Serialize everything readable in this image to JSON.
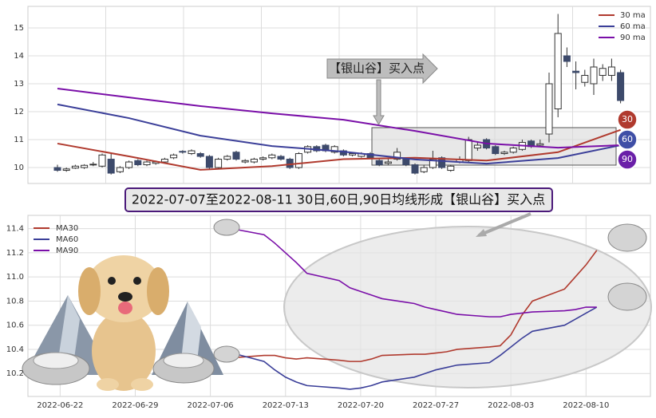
{
  "chart_data": [
    {
      "type": "candlestick",
      "open": [
        10.0,
        9.9,
        9.98,
        10.0,
        10.1,
        10.05,
        10.3,
        9.85,
        10.0,
        10.25,
        10.1,
        10.15,
        10.2,
        10.35,
        10.58,
        10.5,
        10.5,
        10.4,
        10.0,
        10.3,
        10.55,
        10.2,
        10.2,
        10.3,
        10.35,
        10.4,
        10.3,
        10.0,
        10.55,
        10.75,
        10.8,
        10.55,
        10.6,
        10.45,
        10.4,
        10.5,
        10.25,
        10.15,
        10.3,
        10.3,
        10.1,
        9.85,
        10.0,
        10.35,
        9.9,
        10.2,
        10.25,
        10.7,
        11.0,
        10.75,
        10.5,
        10.55,
        10.65,
        10.95,
        10.8,
        11.2,
        12.1,
        14.0,
        13.45,
        13.05,
        13.0,
        13.3,
        13.3,
        13.4
      ],
      "close": [
        9.9,
        9.95,
        10.05,
        10.08,
        10.12,
        10.45,
        9.8,
        10.0,
        10.2,
        10.1,
        10.2,
        10.2,
        10.3,
        10.45,
        10.55,
        10.6,
        10.4,
        10.0,
        10.3,
        10.4,
        10.3,
        10.25,
        10.3,
        10.35,
        10.45,
        10.3,
        10.0,
        10.5,
        10.75,
        10.6,
        10.6,
        10.75,
        10.45,
        10.5,
        10.5,
        10.35,
        10.1,
        10.2,
        10.55,
        10.1,
        9.8,
        10.0,
        10.3,
        10.0,
        10.05,
        10.3,
        11.0,
        10.8,
        10.7,
        10.5,
        10.55,
        10.7,
        10.9,
        10.75,
        10.85,
        13.0,
        14.8,
        13.8,
        13.4,
        13.3,
        13.6,
        13.55,
        13.6,
        12.4
      ],
      "high": [
        10.1,
        10.0,
        10.1,
        10.12,
        10.2,
        10.5,
        10.5,
        10.05,
        10.25,
        10.3,
        10.25,
        10.25,
        10.35,
        10.5,
        10.62,
        10.65,
        10.55,
        10.45,
        10.35,
        10.45,
        10.6,
        10.3,
        10.35,
        10.4,
        10.5,
        10.45,
        10.35,
        10.55,
        10.8,
        10.8,
        10.85,
        10.8,
        10.65,
        10.55,
        10.55,
        10.55,
        10.3,
        10.3,
        10.7,
        10.35,
        10.15,
        10.1,
        10.6,
        10.4,
        10.1,
        10.4,
        11.1,
        10.9,
        11.05,
        10.8,
        10.6,
        10.75,
        11.0,
        11.0,
        11.0,
        13.4,
        15.5,
        14.3,
        13.8,
        13.5,
        13.9,
        13.7,
        13.9,
        13.5
      ],
      "low": [
        9.85,
        9.85,
        9.95,
        9.95,
        10.05,
        10.0,
        9.75,
        9.8,
        9.95,
        10.05,
        10.05,
        10.1,
        10.15,
        10.3,
        10.5,
        10.45,
        10.35,
        9.95,
        9.95,
        10.25,
        10.25,
        10.15,
        10.15,
        10.25,
        10.3,
        10.25,
        9.95,
        9.95,
        10.5,
        10.55,
        10.55,
        10.5,
        10.4,
        10.4,
        10.35,
        10.3,
        10.05,
        10.1,
        10.25,
        10.05,
        9.75,
        9.8,
        9.95,
        9.95,
        9.85,
        10.15,
        10.2,
        10.6,
        10.65,
        10.45,
        10.45,
        10.5,
        10.6,
        10.7,
        10.75,
        10.9,
        11.8,
        13.6,
        12.8,
        12.9,
        12.6,
        13.1,
        13.1,
        12.3
      ],
      "up_color": "#ffffff",
      "down_color": "#3d4a6b",
      "edge_color": "#333333",
      "series": [
        {
          "name": "30 ma",
          "color": "#b03a2e",
          "x": [
            0,
            8,
            16,
            24,
            32,
            40,
            48,
            56,
            63
          ],
          "values": [
            10.86,
            10.4,
            9.92,
            10.05,
            10.3,
            10.35,
            10.25,
            10.55,
            11.35
          ]
        },
        {
          "name": "60 ma",
          "color": "#3b3f99",
          "x": [
            0,
            8,
            16,
            24,
            32,
            40,
            48,
            56,
            63
          ],
          "values": [
            12.26,
            11.77,
            11.14,
            10.77,
            10.57,
            10.29,
            10.14,
            10.34,
            10.8
          ]
        },
        {
          "name": "90 ma",
          "color": "#7a0fa8",
          "x": [
            0,
            8,
            16,
            24,
            32,
            40,
            48,
            56,
            63
          ],
          "values": [
            12.83,
            12.51,
            12.2,
            11.94,
            11.71,
            11.31,
            10.86,
            10.71,
            10.8
          ]
        }
      ],
      "ylim": [
        9.43,
        15.77
      ],
      "yticks": [
        10,
        11,
        12,
        13,
        14,
        15
      ],
      "grid": true,
      "legend": "upper right",
      "annotation": "【银山谷】买入点",
      "markers": [
        {
          "label": "30",
          "color": "#b03a2e"
        },
        {
          "label": "60",
          "color": "#3f4fa6"
        },
        {
          "label": "90",
          "color": "#6a1fa8"
        }
      ]
    },
    {
      "type": "line",
      "title": "2022-07-07至2022-08-11 30日,60日,90日均线形成【银山谷】买入点",
      "x": [
        "2022-07-08",
        "2022-07-11",
        "2022-07-12",
        "2022-07-13",
        "2022-07-14",
        "2022-07-15",
        "2022-07-18",
        "2022-07-19",
        "2022-07-20",
        "2022-07-21",
        "2022-07-22",
        "2022-07-25",
        "2022-07-26",
        "2022-07-27",
        "2022-07-28",
        "2022-07-29",
        "2022-08-01",
        "2022-08-02",
        "2022-08-03",
        "2022-08-04",
        "2022-08-05",
        "2022-08-08",
        "2022-08-09",
        "2022-08-10",
        "2022-08-11"
      ],
      "series": [
        {
          "name": "MA30",
          "color": "#b03a2e",
          "values": [
            10.33,
            10.35,
            10.35,
            10.33,
            10.32,
            10.33,
            10.31,
            10.3,
            10.3,
            10.32,
            10.35,
            10.36,
            10.36,
            10.37,
            10.38,
            10.4,
            10.42,
            10.43,
            10.52,
            10.68,
            10.8,
            10.9,
            11.0,
            11.1,
            11.22
          ]
        },
        {
          "name": "MA60",
          "color": "#3b3f99",
          "values": [
            10.37,
            10.3,
            10.23,
            10.17,
            10.13,
            10.1,
            10.08,
            10.07,
            10.08,
            10.1,
            10.13,
            10.17,
            10.2,
            10.23,
            10.25,
            10.27,
            10.29,
            10.35,
            10.42,
            10.49,
            10.55,
            10.6,
            10.65,
            10.7,
            10.75
          ]
        },
        {
          "name": "MA90",
          "color": "#7a0fa8",
          "values": [
            11.4,
            11.35,
            11.28,
            11.2,
            11.12,
            11.03,
            10.97,
            10.91,
            10.88,
            10.85,
            10.82,
            10.78,
            10.75,
            10.73,
            10.71,
            10.69,
            10.67,
            10.67,
            10.69,
            10.7,
            10.71,
            10.72,
            10.73,
            10.75,
            10.75
          ]
        }
      ],
      "xlim": [
        "2022-06-19",
        "2022-08-16"
      ],
      "xticks": [
        "2022-06-22",
        "2022-06-29",
        "2022-07-06",
        "2022-07-13",
        "2022-07-20",
        "2022-07-27",
        "2022-08-03",
        "2022-08-10"
      ],
      "ylim": [
        10.01,
        11.51
      ],
      "yticks": [
        10.2,
        10.4,
        10.6,
        10.8,
        {
          "value": 11,
          "label": "11.0"
        },
        11.2,
        11.4
      ],
      "grid": true,
      "legend": "upper left"
    }
  ]
}
